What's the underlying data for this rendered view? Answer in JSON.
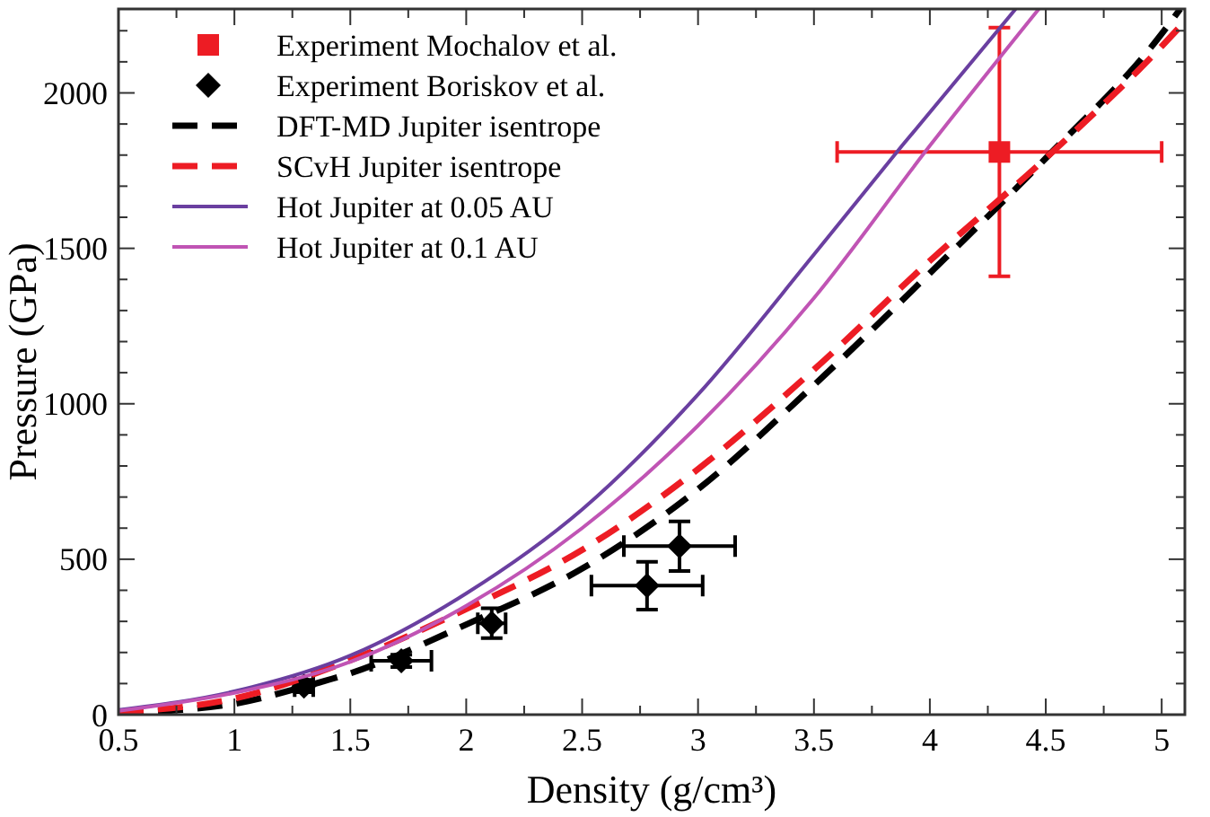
{
  "chart_data": {
    "type": "line",
    "xlabel": "Density  (g/cm³)",
    "ylabel": "Pressure  (GPa)",
    "xlim": [
      0.5,
      5.1
    ],
    "ylim": [
      0,
      2270
    ],
    "xticks": [
      0.5,
      {
        "value": 0.75,
        "label": null
      },
      1,
      {
        "value": 1.25,
        "label": null
      },
      1.5,
      {
        "value": 1.75,
        "label": null
      },
      2,
      {
        "value": 2.25,
        "label": null
      },
      2.5,
      {
        "value": 2.75,
        "label": null
      },
      3,
      {
        "value": 3.25,
        "label": null
      },
      3.5,
      {
        "value": 3.75,
        "label": null
      },
      4,
      {
        "value": 4.25,
        "label": null
      },
      4.5,
      {
        "value": 4.75,
        "label": null
      },
      5
    ],
    "yticks": [
      0,
      {
        "value": 100,
        "label": null
      },
      {
        "value": 200,
        "label": null
      },
      {
        "value": 300,
        "label": null
      },
      {
        "value": 400,
        "label": null
      },
      500,
      {
        "value": 600,
        "label": null
      },
      {
        "value": 700,
        "label": null
      },
      {
        "value": 800,
        "label": null
      },
      {
        "value": 900,
        "label": null
      },
      1000,
      {
        "value": 1100,
        "label": null
      },
      {
        "value": 1200,
        "label": null
      },
      {
        "value": 1300,
        "label": null
      },
      {
        "value": 1400,
        "label": null
      },
      1500,
      {
        "value": 1600,
        "label": null
      },
      {
        "value": 1700,
        "label": null
      },
      {
        "value": 1800,
        "label": null
      },
      {
        "value": 1900,
        "label": null
      },
      2000,
      {
        "value": 2100,
        "label": null
      },
      {
        "value": 2200,
        "label": null
      }
    ],
    "grid": false,
    "legend": "top left",
    "series": [
      {
        "name": "Experiment Mochalov et al.",
        "type": "scatter",
        "marker": "square",
        "color": "#ed1c24",
        "x": [
          4.3
        ],
        "values": [
          1810
        ],
        "errors": [
          400
        ],
        "xerrors": [
          0.7
        ]
      },
      {
        "name": "Experiment Boriskov et al.",
        "type": "scatter",
        "marker": "diamond",
        "color": "#000000",
        "x": [
          1.3,
          1.72,
          2.11,
          2.78,
          2.92
        ],
        "values": [
          92,
          173,
          294,
          415,
          542
        ],
        "errors": [
          20,
          20,
          48,
          77,
          80
        ],
        "xerrors": [
          0.04,
          0.13,
          0.06,
          0.24,
          0.24
        ]
      },
      {
        "name": "DFT-MD Jupiter isentrope",
        "line_style": "dashed",
        "color": "#000000",
        "x": [
          0.5,
          1,
          1.3,
          1.5,
          2,
          2.5,
          3,
          3.5,
          4,
          4.5,
          5,
          5.08
        ],
        "values": [
          5,
          35,
          90,
          133,
          290,
          470,
          725,
          1060,
          1420,
          1790,
          2190,
          2270
        ]
      },
      {
        "name": "SCvH Jupiter isentrope",
        "line_style": "dashed",
        "color": "#ed1c24",
        "x": [
          0.5,
          1,
          1.5,
          2,
          2.5,
          3,
          3.5,
          4,
          4.5,
          5,
          5.1
        ],
        "values": [
          8,
          52,
          175,
          340,
          530,
          790,
          1110,
          1460,
          1790,
          2150,
          2230
        ]
      },
      {
        "name": "Hot Jupiter at 0.05 AU",
        "line_style": "solid",
        "color": "#6a3fa0",
        "x": [
          0.5,
          1,
          1.5,
          2,
          2.5,
          3,
          3.5,
          3.88,
          4.37
        ],
        "values": [
          15,
          75,
          190,
          390,
          660,
          1030,
          1480,
          1830,
          2270
        ]
      },
      {
        "name": "Hot Jupiter at 0.1 AU",
        "line_style": "solid",
        "color": "#c054b4",
        "x": [
          0.5,
          1,
          1.5,
          2,
          2.5,
          3,
          3.5,
          4,
          4.47
        ],
        "values": [
          12,
          70,
          170,
          350,
          600,
          930,
          1340,
          1830,
          2270
        ]
      }
    ]
  }
}
